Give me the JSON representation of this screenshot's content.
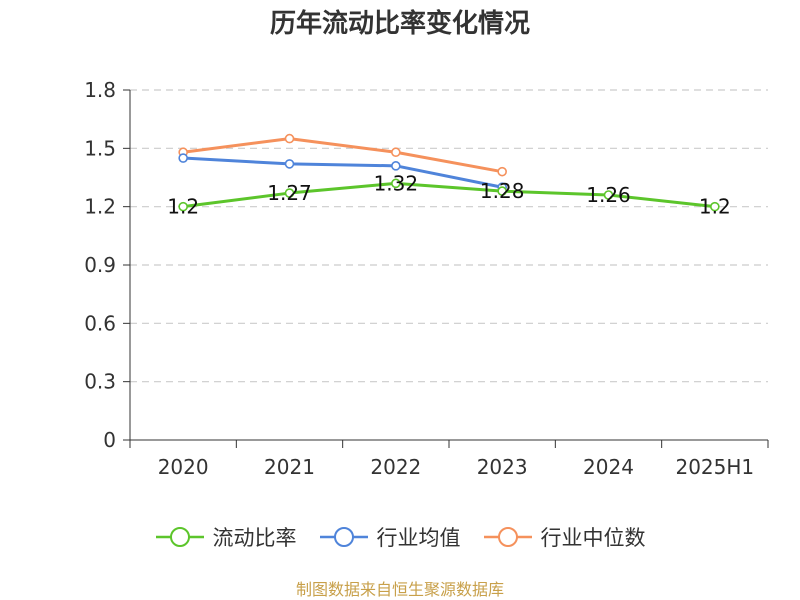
{
  "chart_data": {
    "type": "line",
    "title": "历年流动比率变化情况",
    "categories": [
      "2020",
      "2021",
      "2022",
      "2023",
      "2024",
      "2025H1"
    ],
    "ylim": [
      0,
      1.8
    ],
    "yticks": [
      "0",
      "0.3",
      "0.6",
      "0.9",
      "1.2",
      "1.5",
      "1.8"
    ],
    "grid": true,
    "legend_position": "bottom",
    "series": [
      {
        "name": "流动比率",
        "color": "#5cc52b",
        "values": [
          1.2,
          1.27,
          1.32,
          1.28,
          1.26,
          1.2
        ],
        "labels": [
          "1.2",
          "1.27",
          "1.32",
          "1.28",
          "1.26",
          "1.2"
        ]
      },
      {
        "name": "行业均值",
        "color": "#4f84da",
        "values": [
          1.45,
          1.42,
          1.41,
          1.3,
          null,
          null
        ]
      },
      {
        "name": "行业中位数",
        "color": "#f5915c",
        "values": [
          1.48,
          1.55,
          1.48,
          1.38,
          null,
          null
        ]
      }
    ]
  },
  "source": "制图数据来自恒生聚源数据库"
}
